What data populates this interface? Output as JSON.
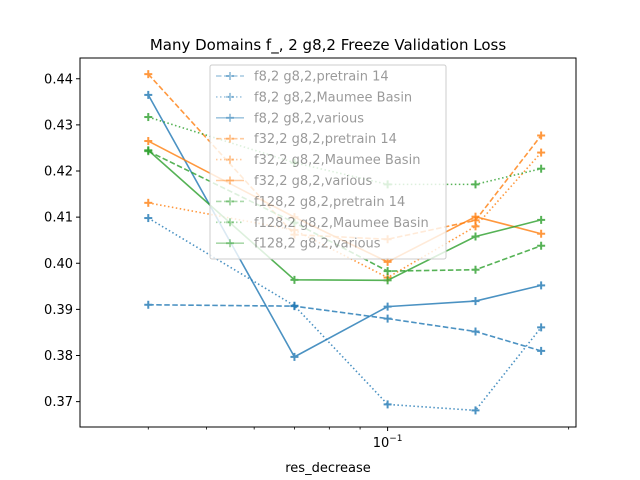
{
  "chart_data": {
    "type": "line",
    "title": "Many Domains f_, 2 g8,2 Freeze Validation Loss",
    "xlabel": "res_decrease",
    "ylabel": "",
    "xscale": "log",
    "xlim": [
      0.0308,
      0.2057
    ],
    "ylim": [
      0.3645,
      0.4445
    ],
    "x": [
      0.04,
      0.07,
      0.1,
      0.14,
      0.18
    ],
    "x_tick_labels": [
      {
        "value": 0.1,
        "label": "10",
        "exp": "−1"
      }
    ],
    "y_ticks": [
      0.37,
      0.38,
      0.39,
      0.4,
      0.41,
      0.42,
      0.43,
      0.44
    ],
    "y_tick_labels": [
      "0.37",
      "0.38",
      "0.39",
      "0.40",
      "0.41",
      "0.42",
      "0.43",
      "0.44"
    ],
    "grid": false,
    "legend_position": "top-center",
    "legend_alpha": 0.4,
    "series": [
      {
        "name": "f8,2 g8,2,pretrain 14",
        "color": "#1f77b4",
        "dash": "dashed",
        "values": [
          0.391,
          0.3907,
          0.388,
          0.3852,
          0.381
        ]
      },
      {
        "name": "f8,2 g8,2,Maumee Basin",
        "color": "#1f77b4",
        "dash": "dotted",
        "values": [
          0.4098,
          0.3908,
          0.3694,
          0.3681,
          0.3861
        ]
      },
      {
        "name": "f8,2 g8,2,various",
        "color": "#1f77b4",
        "dash": "solid",
        "values": [
          0.4365,
          0.3797,
          0.3906,
          0.3918,
          0.3952
        ]
      },
      {
        "name": "f32,2 g8,2,pretrain 14",
        "color": "#ff7f0e",
        "dash": "dashed",
        "values": [
          0.441,
          0.4062,
          0.4052,
          0.4093,
          0.4277
        ]
      },
      {
        "name": "f32,2 g8,2,Maumee Basin",
        "color": "#ff7f0e",
        "dash": "dotted",
        "values": [
          0.4131,
          0.4072,
          0.3969,
          0.408,
          0.424
        ]
      },
      {
        "name": "f32,2 g8,2,various",
        "color": "#ff7f0e",
        "dash": "solid",
        "values": [
          0.4265,
          0.41,
          0.4003,
          0.4101,
          0.4064
        ]
      },
      {
        "name": "f128,2 g8,2,pretrain 14",
        "color": "#2ca02c",
        "dash": "dashed",
        "values": [
          0.4243,
          0.4088,
          0.3983,
          0.3986,
          0.4038
        ]
      },
      {
        "name": "f128,2 g8,2,Maumee Basin",
        "color": "#2ca02c",
        "dash": "dotted",
        "values": [
          0.4317,
          0.4218,
          0.4171,
          0.4171,
          0.4205
        ]
      },
      {
        "name": "f128,2 g8,2,various",
        "color": "#2ca02c",
        "dash": "solid",
        "values": [
          0.4245,
          0.3964,
          0.3963,
          0.4058,
          0.4094
        ]
      }
    ]
  }
}
